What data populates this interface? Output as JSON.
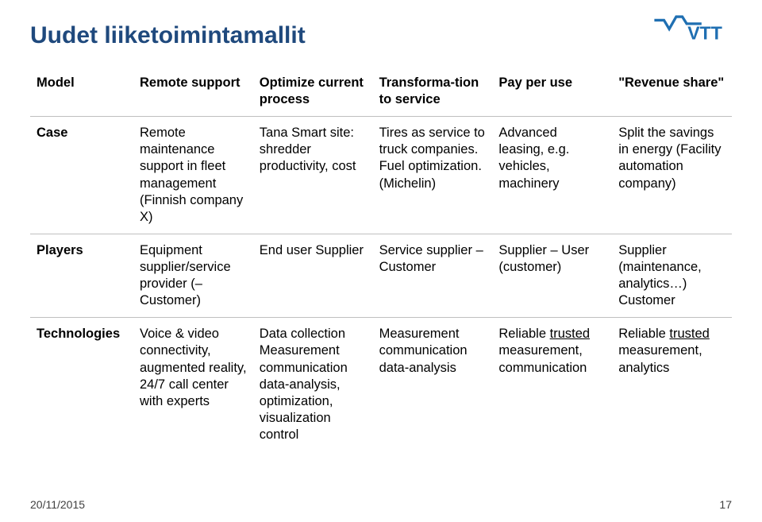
{
  "title": "Uudet liiketoimintamallit",
  "logo": {
    "text": "VTT",
    "color": "#1f6fb2"
  },
  "table": {
    "row_label_col_width": 130,
    "header": {
      "label": "Model",
      "cols": [
        "Remote support",
        "Optimize current process",
        "Transforma-tion to service",
        "Pay per use",
        "\"Revenue share\""
      ]
    },
    "rows": [
      {
        "label": "Case",
        "cells": [
          "Remote maintenance support in fleet management (Finnish company X)",
          "Tana Smart site: shredder productivity, cost",
          "Tires as service to truck companies. Fuel optimization. (Michelin)",
          "Advanced leasing, e.g. vehicles, machinery",
          "Split the savings in energy (Facility automation company)"
        ]
      },
      {
        "label": "Players",
        "cells": [
          "Equipment supplier/service provider (–Customer)",
          "End user Supplier",
          "Service supplier – Customer",
          "Supplier – User (customer)",
          "Supplier (maintenance, analytics…) Customer"
        ]
      },
      {
        "label": "Technologies",
        "cells_html": [
          "Voice & video connectivity, augmented reality, 24/7 call center with experts",
          "Data collection Measurement communication data-analysis, optimization, visualization control",
          "Measurement communication data-analysis",
          "Reliable <span class=\"underline\">trusted</span> measurement, communication",
          "Reliable <span class=\"underline\">trusted</span> measurement, analytics"
        ]
      }
    ]
  },
  "footer": {
    "date": "20/11/2015",
    "page": "17"
  },
  "colors": {
    "title": "#1f497d",
    "border": "#bfbfbf",
    "text": "#000000",
    "footer_text": "#404040",
    "background": "#ffffff"
  },
  "fonts": {
    "title_size_pt": 22,
    "cell_size_pt": 12,
    "footer_size_pt": 10,
    "family": "Arial"
  }
}
